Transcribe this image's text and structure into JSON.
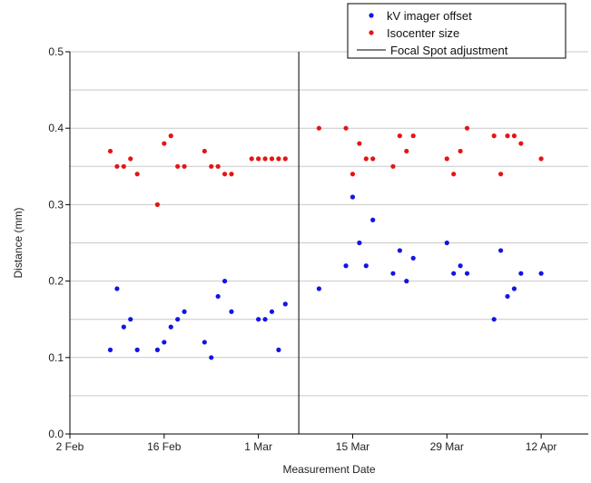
{
  "chart_data": {
    "type": "scatter",
    "xlabel": "Measurement Date",
    "ylabel": "Distance (mm)",
    "xlim": [
      "2 Feb",
      "19 Apr"
    ],
    "ylim": [
      0.0,
      0.5
    ],
    "x_ticks": [
      "2 Feb",
      "16 Feb",
      "1 Mar",
      "15 Mar",
      "29 Mar",
      "12 Apr"
    ],
    "y_ticks": [
      "0.0",
      "0.1",
      "0.2",
      "0.3",
      "0.4",
      "0.5"
    ],
    "grid": "horizontal",
    "legend_position": "top-right",
    "series": [
      {
        "name": "kV imager offset",
        "color": "#1414e6",
        "points": [
          {
            "x": "8 Feb",
            "y": 0.11
          },
          {
            "x": "9 Feb",
            "y": 0.19
          },
          {
            "x": "10 Feb",
            "y": 0.14
          },
          {
            "x": "11 Feb",
            "y": 0.15
          },
          {
            "x": "12 Feb",
            "y": 0.11
          },
          {
            "x": "15 Feb",
            "y": 0.11
          },
          {
            "x": "16 Feb",
            "y": 0.12
          },
          {
            "x": "17 Feb",
            "y": 0.14
          },
          {
            "x": "18 Feb",
            "y": 0.15
          },
          {
            "x": "19 Feb",
            "y": 0.16
          },
          {
            "x": "22 Feb",
            "y": 0.12
          },
          {
            "x": "23 Feb",
            "y": 0.1
          },
          {
            "x": "24 Feb",
            "y": 0.18
          },
          {
            "x": "25 Feb",
            "y": 0.2
          },
          {
            "x": "26 Feb",
            "y": 0.16
          },
          {
            "x": "1 Mar",
            "y": 0.15
          },
          {
            "x": "2 Mar",
            "y": 0.15
          },
          {
            "x": "3 Mar",
            "y": 0.16
          },
          {
            "x": "4 Mar",
            "y": 0.11
          },
          {
            "x": "5 Mar",
            "y": 0.17
          },
          {
            "x": "10 Mar",
            "y": 0.19
          },
          {
            "x": "14 Mar",
            "y": 0.22
          },
          {
            "x": "15 Mar",
            "y": 0.31
          },
          {
            "x": "16 Mar",
            "y": 0.25
          },
          {
            "x": "17 Mar",
            "y": 0.22
          },
          {
            "x": "18 Mar",
            "y": 0.28
          },
          {
            "x": "21 Mar",
            "y": 0.21
          },
          {
            "x": "22 Mar",
            "y": 0.24
          },
          {
            "x": "23 Mar",
            "y": 0.2
          },
          {
            "x": "24 Mar",
            "y": 0.23
          },
          {
            "x": "29 Mar",
            "y": 0.25
          },
          {
            "x": "30 Mar",
            "y": 0.21
          },
          {
            "x": "31 Mar",
            "y": 0.22
          },
          {
            "x": "1 Apr",
            "y": 0.21
          },
          {
            "x": "5 Apr",
            "y": 0.15
          },
          {
            "x": "6 Apr",
            "y": 0.24
          },
          {
            "x": "7 Apr",
            "y": 0.18
          },
          {
            "x": "8 Apr",
            "y": 0.19
          },
          {
            "x": "9 Apr",
            "y": 0.21
          },
          {
            "x": "12 Apr",
            "y": 0.21
          }
        ]
      },
      {
        "name": "Isocenter size",
        "color": "#e61414",
        "points": [
          {
            "x": "8 Feb",
            "y": 0.37
          },
          {
            "x": "9 Feb",
            "y": 0.35
          },
          {
            "x": "10 Feb",
            "y": 0.35
          },
          {
            "x": "11 Feb",
            "y": 0.36
          },
          {
            "x": "12 Feb",
            "y": 0.34
          },
          {
            "x": "15 Feb",
            "y": 0.3
          },
          {
            "x": "16 Feb",
            "y": 0.38
          },
          {
            "x": "17 Feb",
            "y": 0.39
          },
          {
            "x": "18 Feb",
            "y": 0.35
          },
          {
            "x": "19 Feb",
            "y": 0.35
          },
          {
            "x": "22 Feb",
            "y": 0.37
          },
          {
            "x": "23 Feb",
            "y": 0.35
          },
          {
            "x": "24 Feb",
            "y": 0.35
          },
          {
            "x": "25 Feb",
            "y": 0.34
          },
          {
            "x": "26 Feb",
            "y": 0.34
          },
          {
            "x": "29 Feb",
            "y": 0.36
          },
          {
            "x": "1 Mar",
            "y": 0.36
          },
          {
            "x": "2 Mar",
            "y": 0.36
          },
          {
            "x": "3 Mar",
            "y": 0.36
          },
          {
            "x": "4 Mar",
            "y": 0.36
          },
          {
            "x": "5 Mar",
            "y": 0.36
          },
          {
            "x": "10 Mar",
            "y": 0.4
          },
          {
            "x": "14 Mar",
            "y": 0.4
          },
          {
            "x": "15 Mar",
            "y": 0.34
          },
          {
            "x": "16 Mar",
            "y": 0.38
          },
          {
            "x": "17 Mar",
            "y": 0.36
          },
          {
            "x": "18 Mar",
            "y": 0.36
          },
          {
            "x": "21 Mar",
            "y": 0.35
          },
          {
            "x": "22 Mar",
            "y": 0.39
          },
          {
            "x": "23 Mar",
            "y": 0.37
          },
          {
            "x": "24 Mar",
            "y": 0.39
          },
          {
            "x": "29 Mar",
            "y": 0.36
          },
          {
            "x": "30 Mar",
            "y": 0.34
          },
          {
            "x": "31 Mar",
            "y": 0.37
          },
          {
            "x": "1 Apr",
            "y": 0.4
          },
          {
            "x": "5 Apr",
            "y": 0.39
          },
          {
            "x": "6 Apr",
            "y": 0.34
          },
          {
            "x": "7 Apr",
            "y": 0.39
          },
          {
            "x": "8 Apr",
            "y": 0.39
          },
          {
            "x": "9 Apr",
            "y": 0.38
          },
          {
            "x": "12 Apr",
            "y": 0.36
          }
        ]
      }
    ],
    "annotations": [
      {
        "type": "vertical-line",
        "x": "7 Mar",
        "name": "Focal Spot adjustment",
        "color": "#000000"
      }
    ]
  }
}
